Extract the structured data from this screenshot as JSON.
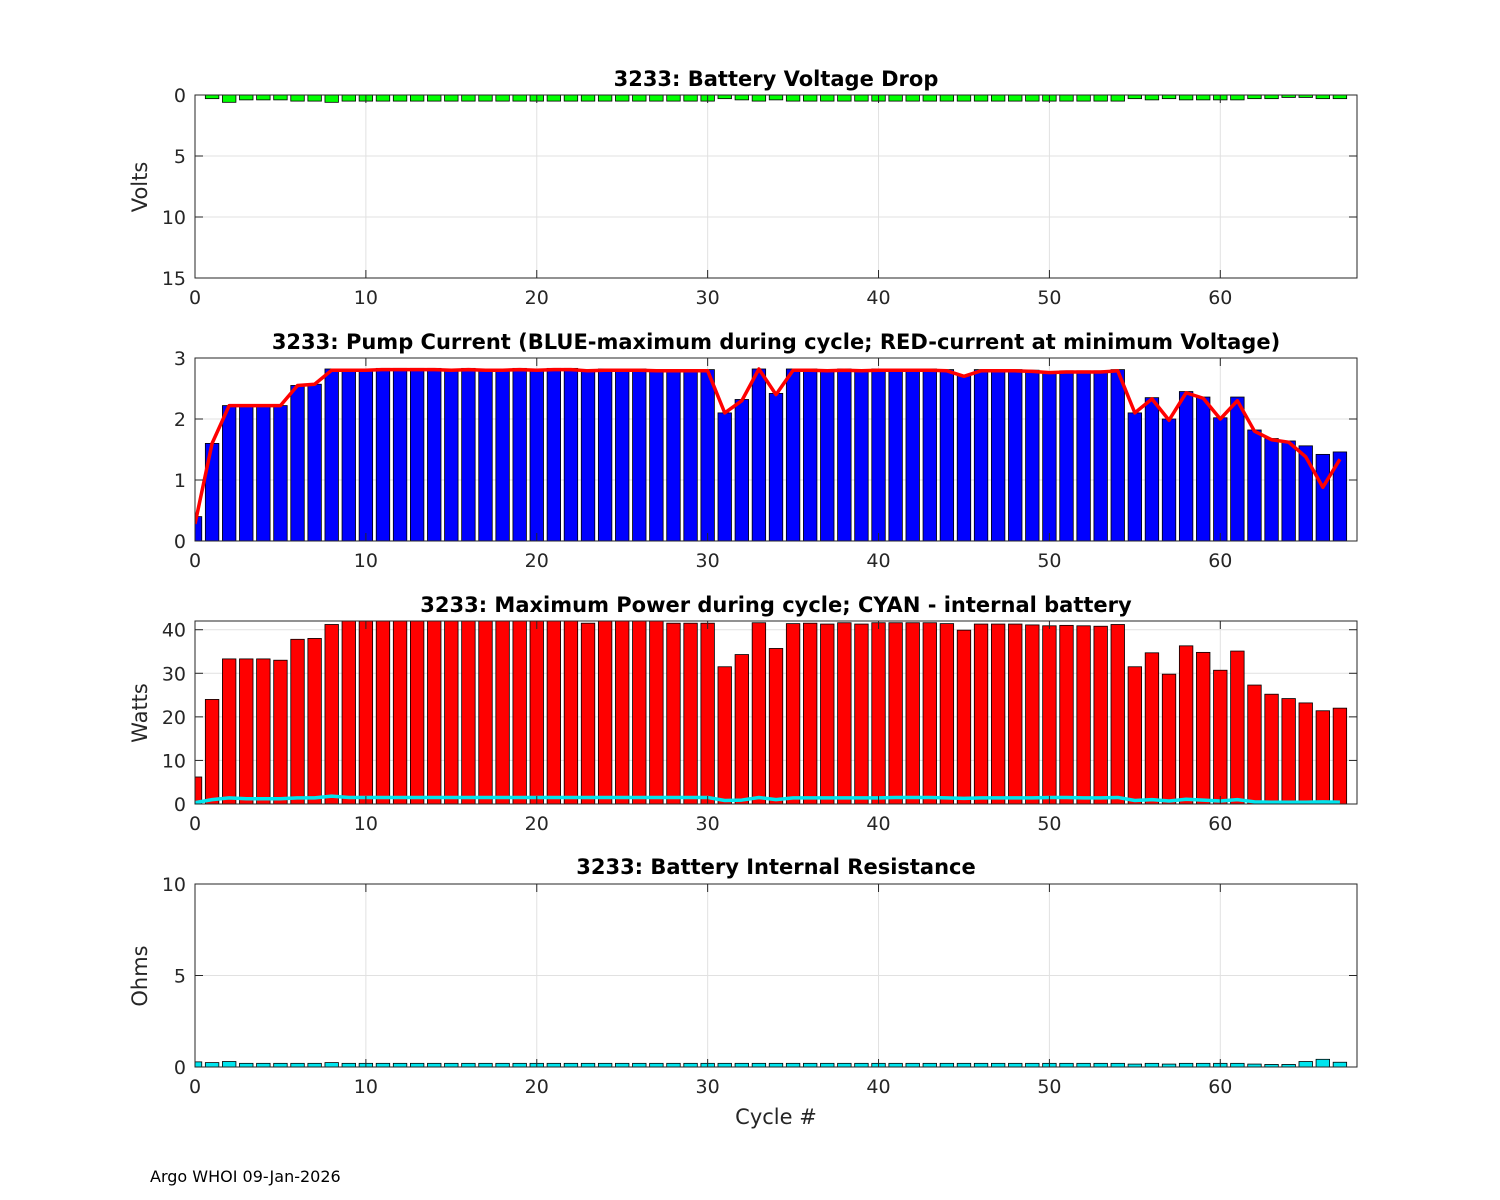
{
  "footer": "Argo WHOI 09-Jan-2026",
  "colors": {
    "voltage_bar": "#00ff00",
    "pump_bar": "#0000ff",
    "pump_line": "#ff0000",
    "power_bar": "#ff0000",
    "power_line": "#00e5ee",
    "resistance_bar": "#00e5ee"
  },
  "chart_data": [
    {
      "type": "bar",
      "title": "3233: Battery Voltage Drop",
      "xlabel": "",
      "ylabel": "Volts",
      "xlim": [
        0,
        68
      ],
      "ylim": [
        0,
        15
      ],
      "y_reversed": true,
      "xticks": [
        0,
        10,
        20,
        30,
        40,
        50,
        60
      ],
      "yticks": [
        0,
        5,
        10,
        15
      ],
      "grid": true,
      "x": [
        1,
        2,
        3,
        4,
        5,
        6,
        7,
        8,
        9,
        10,
        11,
        12,
        13,
        14,
        15,
        16,
        17,
        18,
        19,
        20,
        21,
        22,
        23,
        24,
        25,
        26,
        27,
        28,
        29,
        30,
        31,
        32,
        33,
        34,
        35,
        36,
        37,
        38,
        39,
        40,
        41,
        42,
        43,
        44,
        45,
        46,
        47,
        48,
        49,
        50,
        51,
        52,
        53,
        54,
        55,
        56,
        57,
        58,
        59,
        60,
        61,
        62,
        63,
        64,
        65,
        66,
        67
      ],
      "values": [
        0.3,
        0.6,
        0.4,
        0.4,
        0.4,
        0.5,
        0.5,
        0.6,
        0.5,
        0.5,
        0.5,
        0.5,
        0.5,
        0.5,
        0.5,
        0.5,
        0.5,
        0.5,
        0.5,
        0.5,
        0.5,
        0.5,
        0.5,
        0.5,
        0.5,
        0.5,
        0.5,
        0.5,
        0.5,
        0.5,
        0.3,
        0.4,
        0.5,
        0.4,
        0.5,
        0.5,
        0.5,
        0.5,
        0.5,
        0.5,
        0.5,
        0.5,
        0.5,
        0.5,
        0.5,
        0.5,
        0.5,
        0.5,
        0.5,
        0.5,
        0.5,
        0.5,
        0.5,
        0.5,
        0.3,
        0.4,
        0.3,
        0.4,
        0.4,
        0.4,
        0.4,
        0.3,
        0.3,
        0.2,
        0.2,
        0.3,
        0.3
      ]
    },
    {
      "type": "bar",
      "title": "3233: Pump Current (BLUE-maximum during cycle; RED-current at minimum Voltage)",
      "xlabel": "",
      "ylabel": "",
      "xlim": [
        0,
        68
      ],
      "ylim": [
        0,
        3
      ],
      "xticks": [
        0,
        10,
        20,
        30,
        40,
        50,
        60
      ],
      "yticks": [
        0,
        1,
        2,
        3
      ],
      "grid": true,
      "x": [
        0,
        1,
        2,
        3,
        4,
        5,
        6,
        7,
        8,
        9,
        10,
        11,
        12,
        13,
        14,
        15,
        16,
        17,
        18,
        19,
        20,
        21,
        22,
        23,
        24,
        25,
        26,
        27,
        28,
        29,
        30,
        31,
        32,
        33,
        34,
        35,
        36,
        37,
        38,
        39,
        40,
        41,
        42,
        43,
        44,
        45,
        46,
        47,
        48,
        49,
        50,
        51,
        52,
        53,
        54,
        55,
        56,
        57,
        58,
        59,
        60,
        61,
        62,
        63,
        64,
        65,
        66,
        67
      ],
      "series": [
        {
          "name": "maximum during cycle",
          "kind": "bar",
          "values": [
            0.4,
            1.6,
            2.22,
            2.22,
            2.22,
            2.22,
            2.55,
            2.57,
            2.82,
            2.82,
            2.82,
            2.83,
            2.83,
            2.83,
            2.83,
            2.82,
            2.83,
            2.82,
            2.82,
            2.83,
            2.82,
            2.83,
            2.83,
            2.81,
            2.82,
            2.82,
            2.82,
            2.81,
            2.81,
            2.81,
            2.81,
            2.1,
            2.32,
            2.82,
            2.42,
            2.82,
            2.82,
            2.81,
            2.82,
            2.81,
            2.82,
            2.82,
            2.82,
            2.82,
            2.81,
            2.72,
            2.81,
            2.81,
            2.81,
            2.8,
            2.78,
            2.79,
            2.79,
            2.79,
            2.81,
            2.1,
            2.35,
            2.0,
            2.45,
            2.36,
            2.02,
            2.36,
            1.82,
            1.68,
            1.64,
            1.56,
            1.42,
            1.46
          ]
        },
        {
          "name": "current at minimum Voltage",
          "kind": "line",
          "values": [
            0.28,
            1.6,
            2.22,
            2.22,
            2.22,
            2.22,
            2.55,
            2.57,
            2.8,
            2.8,
            2.8,
            2.81,
            2.81,
            2.81,
            2.81,
            2.8,
            2.81,
            2.8,
            2.8,
            2.81,
            2.8,
            2.81,
            2.81,
            2.79,
            2.8,
            2.8,
            2.8,
            2.79,
            2.79,
            2.79,
            2.79,
            2.1,
            2.3,
            2.82,
            2.4,
            2.8,
            2.8,
            2.79,
            2.8,
            2.79,
            2.8,
            2.8,
            2.8,
            2.8,
            2.79,
            2.7,
            2.79,
            2.79,
            2.79,
            2.78,
            2.76,
            2.77,
            2.77,
            2.77,
            2.79,
            2.1,
            2.33,
            1.98,
            2.43,
            2.34,
            2.0,
            2.3,
            1.8,
            1.66,
            1.62,
            1.38,
            0.88,
            1.34
          ]
        }
      ]
    },
    {
      "type": "bar",
      "title": "3233: Maximum Power during cycle; CYAN - internal battery",
      "xlabel": "",
      "ylabel": "Watts",
      "xlim": [
        0,
        68
      ],
      "ylim": [
        0,
        42
      ],
      "xticks": [
        0,
        10,
        20,
        30,
        40,
        50,
        60
      ],
      "yticks": [
        0,
        10,
        20,
        30,
        40
      ],
      "grid": true,
      "x": [
        0,
        1,
        2,
        3,
        4,
        5,
        6,
        7,
        8,
        9,
        10,
        11,
        12,
        13,
        14,
        15,
        16,
        17,
        18,
        19,
        20,
        21,
        22,
        23,
        24,
        25,
        26,
        27,
        28,
        29,
        30,
        31,
        32,
        33,
        34,
        35,
        36,
        37,
        38,
        39,
        40,
        41,
        42,
        43,
        44,
        45,
        46,
        47,
        48,
        49,
        50,
        51,
        52,
        53,
        54,
        55,
        56,
        57,
        58,
        59,
        60,
        61,
        62,
        63,
        64,
        65,
        66,
        67
      ],
      "series": [
        {
          "name": "Maximum Power",
          "kind": "bar",
          "values": [
            6.2,
            24,
            33.3,
            33.3,
            33.3,
            33,
            37.8,
            38,
            41.2,
            42,
            42,
            42,
            42,
            42,
            42,
            42,
            42,
            42,
            42,
            42,
            42,
            42,
            42,
            41.5,
            42,
            42,
            42,
            42,
            41.5,
            41.5,
            41.5,
            31.5,
            34.3,
            41.6,
            35.7,
            41.4,
            41.5,
            41.3,
            41.6,
            41.3,
            41.6,
            41.6,
            41.6,
            41.6,
            41.4,
            39.9,
            41.3,
            41.3,
            41.3,
            41.1,
            40.9,
            41,
            40.9,
            40.8,
            41.2,
            31.5,
            34.7,
            29.8,
            36.3,
            34.8,
            30.7,
            35.1,
            27.3,
            25.2,
            24.2,
            23.2,
            21.4,
            22
          ]
        },
        {
          "name": "internal battery",
          "kind": "line",
          "values": [
            0.3,
            1,
            1.4,
            1.2,
            1.2,
            1.2,
            1.4,
            1.4,
            1.8,
            1.5,
            1.5,
            1.5,
            1.5,
            1.5,
            1.5,
            1.5,
            1.5,
            1.5,
            1.5,
            1.5,
            1.5,
            1.5,
            1.5,
            1.5,
            1.5,
            1.5,
            1.5,
            1.5,
            1.5,
            1.5,
            1.5,
            0.8,
            0.9,
            1.5,
            1,
            1.4,
            1.4,
            1.4,
            1.4,
            1.4,
            1.4,
            1.5,
            1.5,
            1.5,
            1.4,
            1.3,
            1.4,
            1.4,
            1.4,
            1.4,
            1.5,
            1.5,
            1.4,
            1.4,
            1.5,
            0.8,
            1,
            0.7,
            1.1,
            0.9,
            0.7,
            1,
            0.5,
            0.4,
            0.4,
            0.4,
            0.5,
            0.4
          ]
        }
      ]
    },
    {
      "type": "bar",
      "title": "3233: Battery Internal Resistance",
      "xlabel": "Cycle #",
      "ylabel": "Ohms",
      "xlim": [
        0,
        68
      ],
      "ylim": [
        0,
        10
      ],
      "xticks": [
        0,
        10,
        20,
        30,
        40,
        50,
        60
      ],
      "yticks": [
        0,
        5,
        10
      ],
      "grid": true,
      "x": [
        0,
        1,
        2,
        3,
        4,
        5,
        6,
        7,
        8,
        9,
        10,
        11,
        12,
        13,
        14,
        15,
        16,
        17,
        18,
        19,
        20,
        21,
        22,
        23,
        24,
        25,
        26,
        27,
        28,
        29,
        30,
        31,
        32,
        33,
        34,
        35,
        36,
        37,
        38,
        39,
        40,
        41,
        42,
        43,
        44,
        45,
        46,
        47,
        48,
        49,
        50,
        51,
        52,
        53,
        54,
        55,
        56,
        57,
        58,
        59,
        60,
        61,
        62,
        63,
        64,
        65,
        66,
        67
      ],
      "values": [
        0.28,
        0.24,
        0.3,
        0.2,
        0.2,
        0.2,
        0.2,
        0.2,
        0.24,
        0.2,
        0.2,
        0.2,
        0.2,
        0.2,
        0.2,
        0.2,
        0.2,
        0.2,
        0.2,
        0.2,
        0.2,
        0.2,
        0.2,
        0.2,
        0.2,
        0.2,
        0.2,
        0.2,
        0.2,
        0.2,
        0.2,
        0.2,
        0.2,
        0.2,
        0.2,
        0.2,
        0.2,
        0.2,
        0.2,
        0.2,
        0.2,
        0.2,
        0.2,
        0.2,
        0.2,
        0.2,
        0.2,
        0.2,
        0.2,
        0.2,
        0.2,
        0.2,
        0.2,
        0.2,
        0.2,
        0.16,
        0.2,
        0.16,
        0.2,
        0.2,
        0.2,
        0.2,
        0.16,
        0.14,
        0.14,
        0.3,
        0.42,
        0.26
      ]
    }
  ]
}
